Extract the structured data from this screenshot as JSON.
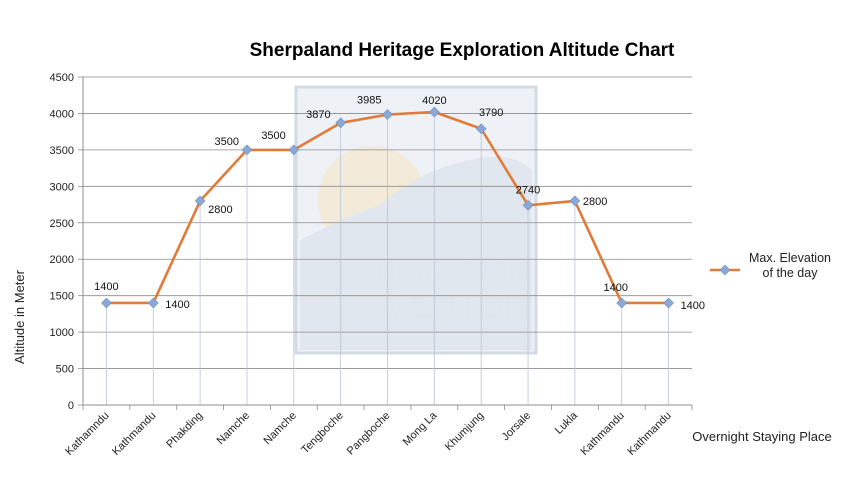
{
  "chart_data": {
    "type": "line",
    "title": "Sherpaland Heritage Exploration Altitude Chart",
    "xlabel": "Overnight Staying Place",
    "ylabel": "Altitude in Meter",
    "categories": [
      "Kathamndu",
      "Kathmandu",
      "Phakding",
      "Namche",
      "Namche",
      "Tengboche",
      "Pangboche",
      "Mong La",
      "Khumjung",
      "Jorsale",
      "Lukla",
      "Kathmandu",
      "Kathmandu"
    ],
    "series": [
      {
        "name": "Max. Elevation of the day",
        "legend_lines": [
          "Max. Elevation",
          "of the day"
        ],
        "values": [
          1400,
          1400,
          2800,
          3500,
          3500,
          3870,
          3985,
          4020,
          3790,
          2740,
          2800,
          1400,
          1400
        ],
        "color": "#e07b39",
        "marker_color": "#8aa9d6"
      }
    ],
    "ylim": [
      0,
      4500
    ],
    "yticks": [
      "0",
      "500",
      "1000",
      "1500",
      "2000",
      "2500",
      "3000",
      "3500",
      "4000",
      "4500"
    ],
    "grid": true,
    "legend_position": "right"
  },
  "watermark": {
    "line1": "HIMALAYAN",
    "line2": "MENTOR"
  },
  "colors": {
    "gridline": "#8c8c8c",
    "axis": "#8c8c8c",
    "line": "#e07b39",
    "marker": "#8aa9d6"
  }
}
